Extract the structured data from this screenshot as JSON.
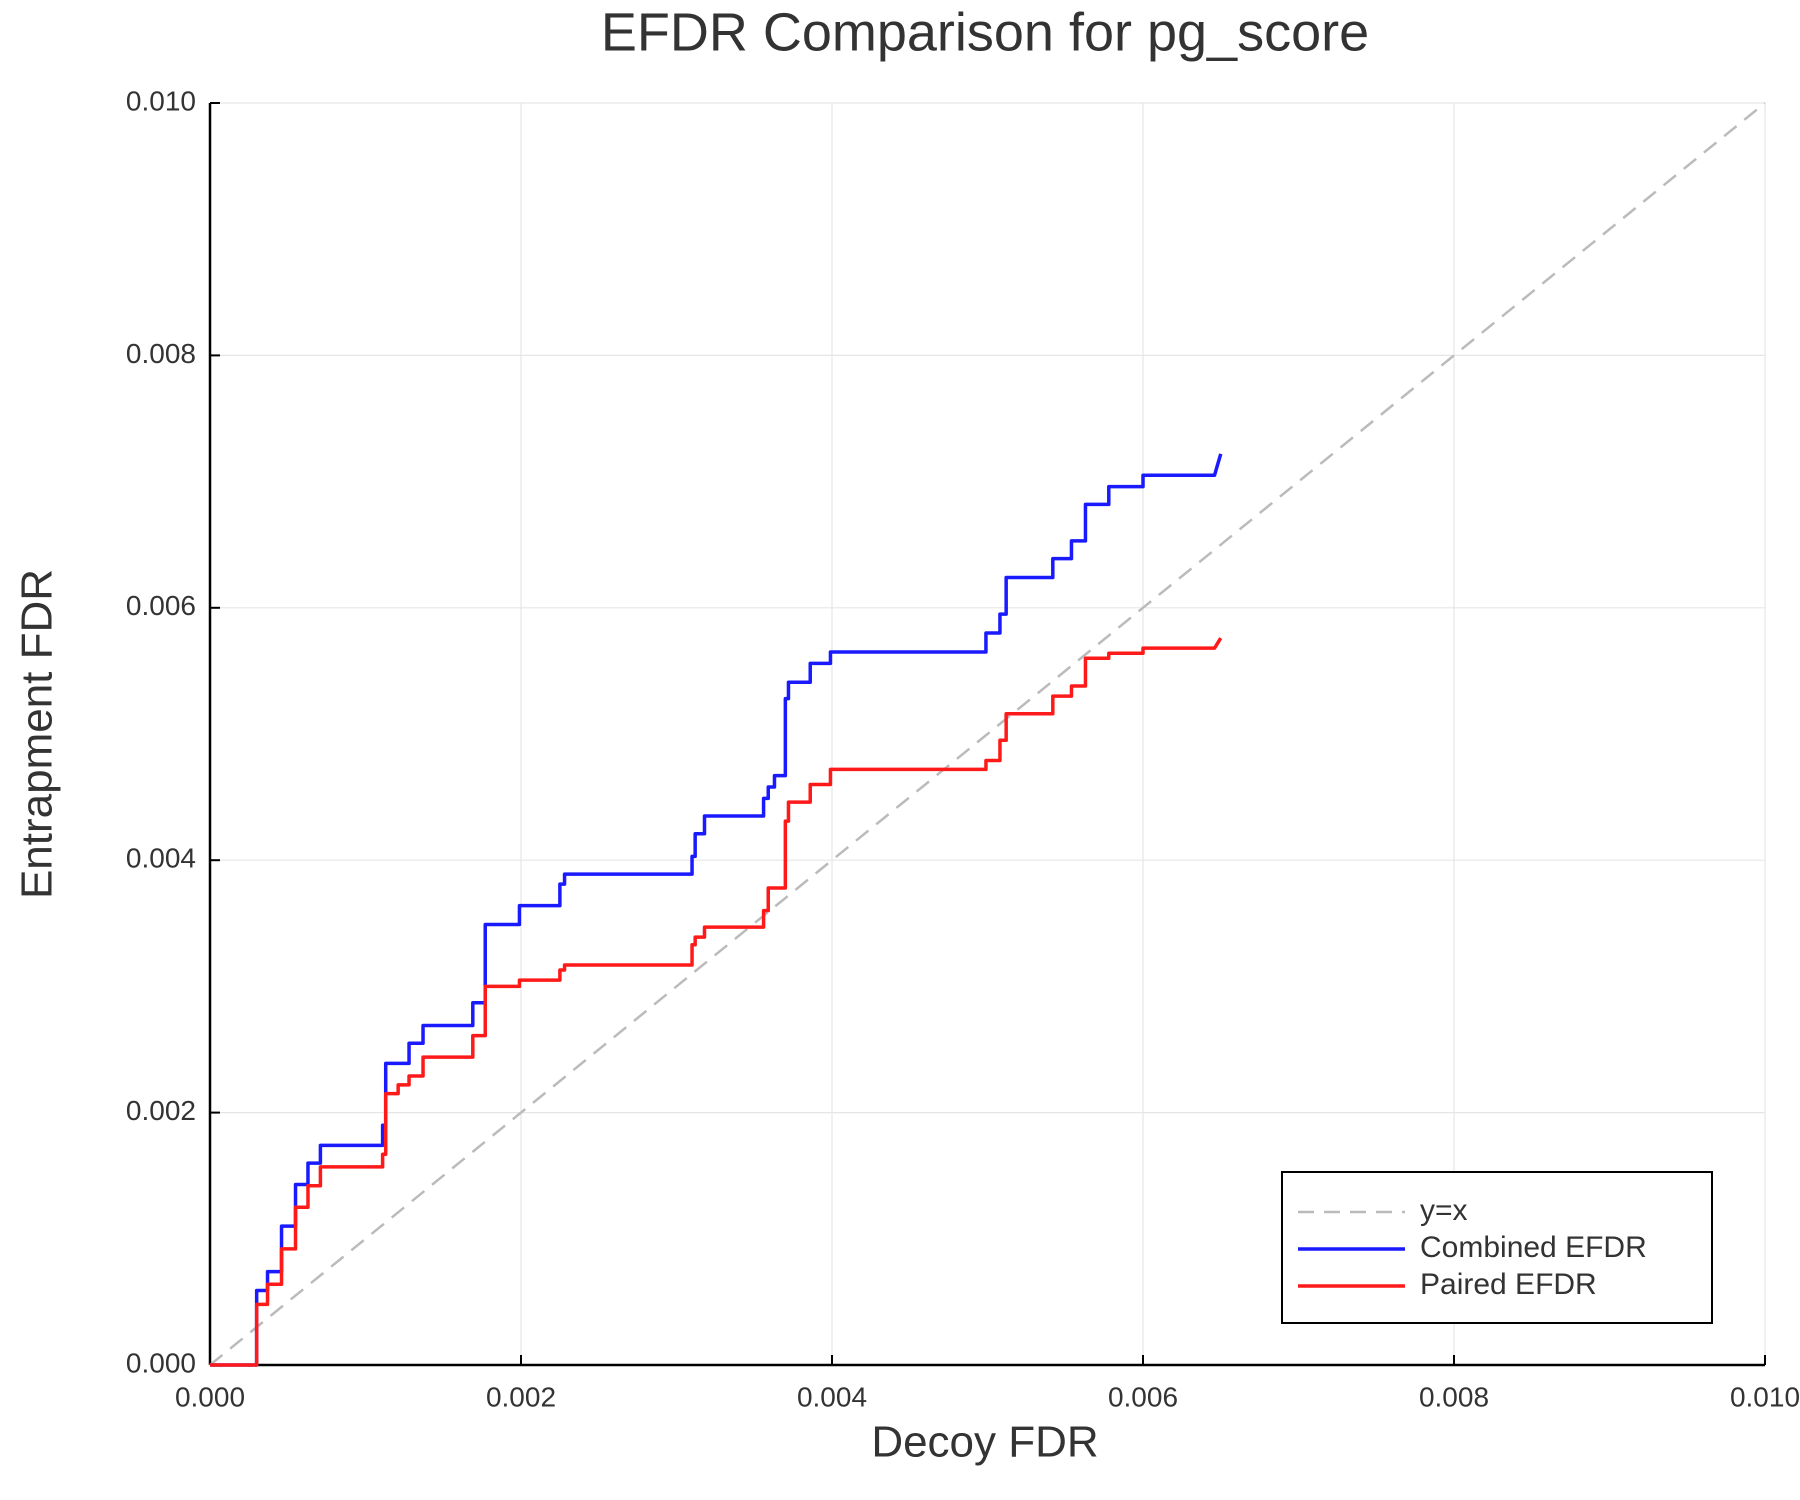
{
  "chart_data": {
    "type": "line",
    "title": "EFDR Comparison for pg_score",
    "x_label": "Decoy FDR",
    "y_label": "Entrapment FDR",
    "xlim": [
      0,
      0.01
    ],
    "ylim": [
      0,
      0.01
    ],
    "xticks": [
      {
        "value": 0,
        "label": "0.000"
      },
      0.002,
      0.004,
      0.006,
      0.008,
      {
        "value": 0.01,
        "label": "0.010"
      }
    ],
    "yticks": [
      {
        "value": 0,
        "label": "0.000"
      },
      0.002,
      0.004,
      0.006,
      0.008,
      {
        "value": 0.01,
        "label": "0.010"
      }
    ],
    "grid": true,
    "legend": "bottom-right",
    "series": [
      {
        "name": "y=x",
        "color": "#bbbbbb",
        "dash": true,
        "x": [
          0,
          0.01
        ],
        "values": [
          0,
          0.01
        ]
      },
      {
        "name": "Combined EFDR",
        "color": "#1a1aff",
        "dash": false,
        "x": [
          0,
          0.0003,
          0.0003,
          0.00037,
          0.00037,
          0.00046,
          0.00046,
          0.00055,
          0.00055,
          0.00063,
          0.00063,
          0.00071,
          0.00071,
          0.00111,
          0.00111,
          0.00113,
          0.00113,
          0.00128,
          0.00128,
          0.00137,
          0.00137,
          0.00169,
          0.00169,
          0.00177,
          0.00177,
          0.00199,
          0.00199,
          0.00225,
          0.00225,
          0.00228,
          0.00228,
          0.0031,
          0.0031,
          0.00312,
          0.00312,
          0.00318,
          0.00318,
          0.00356,
          0.00356,
          0.00359,
          0.00359,
          0.00363,
          0.00363,
          0.0037,
          0.0037,
          0.00372,
          0.00372,
          0.00386,
          0.00386,
          0.00399,
          0.00399,
          0.00499,
          0.00499,
          0.00508,
          0.00508,
          0.00512,
          0.00512,
          0.00542,
          0.00542,
          0.00554,
          0.00554,
          0.00563,
          0.00563,
          0.00578,
          0.00578,
          0.006,
          0.006,
          0.00646,
          0.0065
        ],
        "values": [
          0,
          0,
          0.00059,
          0.00059,
          0.00074,
          0.00074,
          0.0011,
          0.0011,
          0.00143,
          0.00143,
          0.0016,
          0.0016,
          0.00174,
          0.00174,
          0.0019,
          0.0019,
          0.00239,
          0.00239,
          0.00255,
          0.00255,
          0.00269,
          0.00269,
          0.00287,
          0.00287,
          0.00349,
          0.00349,
          0.00364,
          0.00364,
          0.00381,
          0.00381,
          0.00389,
          0.00389,
          0.00403,
          0.00403,
          0.00421,
          0.00421,
          0.00435,
          0.00435,
          0.00449,
          0.00449,
          0.00458,
          0.00458,
          0.00467,
          0.00467,
          0.00528,
          0.00528,
          0.00541,
          0.00541,
          0.00556,
          0.00556,
          0.00565,
          0.00565,
          0.0058,
          0.0058,
          0.00595,
          0.00595,
          0.00624,
          0.00624,
          0.00639,
          0.00639,
          0.00653,
          0.00653,
          0.00682,
          0.00682,
          0.00696,
          0.00696,
          0.00705,
          0.00705,
          0.00722
        ]
      },
      {
        "name": "Paired EFDR",
        "color": "#ff1a1a",
        "dash": false,
        "x": [
          0,
          0.0003,
          0.0003,
          0.00037,
          0.00037,
          0.00046,
          0.00046,
          0.00055,
          0.00055,
          0.00063,
          0.00063,
          0.00071,
          0.00071,
          0.00111,
          0.00111,
          0.00113,
          0.00113,
          0.00121,
          0.00121,
          0.00128,
          0.00128,
          0.00137,
          0.00137,
          0.00169,
          0.00169,
          0.00177,
          0.00177,
          0.00199,
          0.00199,
          0.00225,
          0.00225,
          0.00228,
          0.00228,
          0.0031,
          0.0031,
          0.00312,
          0.00312,
          0.00318,
          0.00318,
          0.00356,
          0.00356,
          0.00359,
          0.00359,
          0.0037,
          0.0037,
          0.00372,
          0.00372,
          0.00386,
          0.00386,
          0.00399,
          0.00399,
          0.00499,
          0.00499,
          0.00508,
          0.00508,
          0.00512,
          0.00512,
          0.00542,
          0.00542,
          0.00554,
          0.00554,
          0.00563,
          0.00563,
          0.00578,
          0.00578,
          0.006,
          0.006,
          0.00646,
          0.0065
        ],
        "values": [
          0,
          0,
          0.00048,
          0.00048,
          0.00064,
          0.00064,
          0.00092,
          0.00092,
          0.00125,
          0.00125,
          0.00142,
          0.00142,
          0.00157,
          0.00157,
          0.00167,
          0.00167,
          0.00215,
          0.00215,
          0.00222,
          0.00222,
          0.00229,
          0.00229,
          0.00244,
          0.00244,
          0.00261,
          0.00261,
          0.003,
          0.003,
          0.00305,
          0.00305,
          0.00313,
          0.00313,
          0.00317,
          0.00317,
          0.00333,
          0.00333,
          0.00339,
          0.00339,
          0.00347,
          0.00347,
          0.0036,
          0.0036,
          0.00378,
          0.00378,
          0.00431,
          0.00431,
          0.00446,
          0.00446,
          0.0046,
          0.0046,
          0.00472,
          0.00472,
          0.00479,
          0.00479,
          0.00495,
          0.00495,
          0.00516,
          0.00516,
          0.0053,
          0.0053,
          0.00538,
          0.00538,
          0.0056,
          0.0056,
          0.00564,
          0.00564,
          0.00568,
          0.00568,
          0.00576
        ]
      }
    ]
  }
}
